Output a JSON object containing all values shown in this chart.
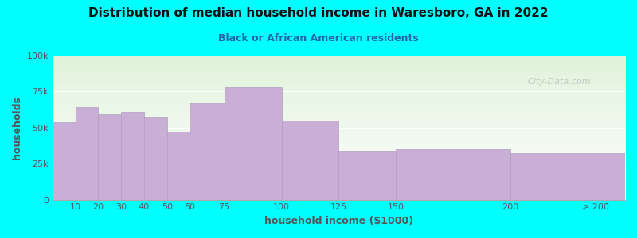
{
  "title": "Distribution of median household income in Waresboro, GA in 2022",
  "subtitle": "Black or African American residents",
  "xlabel": "household income ($1000)",
  "ylabel": "households",
  "background_color": "#00FFFF",
  "bar_color": "#c9afd6",
  "bar_edge_color": "#b09ec0",
  "categories": [
    "10",
    "20",
    "30",
    "40",
    "50",
    "60",
    "75",
    "100",
    "125",
    "150",
    "200",
    "> 200"
  ],
  "values": [
    54000,
    64000,
    59000,
    61000,
    57000,
    47000,
    67000,
    78000,
    55000,
    34000,
    35000,
    32000
  ],
  "ylim": [
    0,
    100000
  ],
  "yticks": [
    0,
    25000,
    50000,
    75000,
    100000
  ],
  "ytick_labels": [
    "0",
    "25k",
    "50k",
    "75k",
    "100k"
  ],
  "watermark": "City-Data.com",
  "title_fontsize": 11,
  "subtitle_fontsize": 9,
  "subtitle_color": "#2266aa",
  "axis_label_color": "#555555",
  "tick_color": "#555555"
}
